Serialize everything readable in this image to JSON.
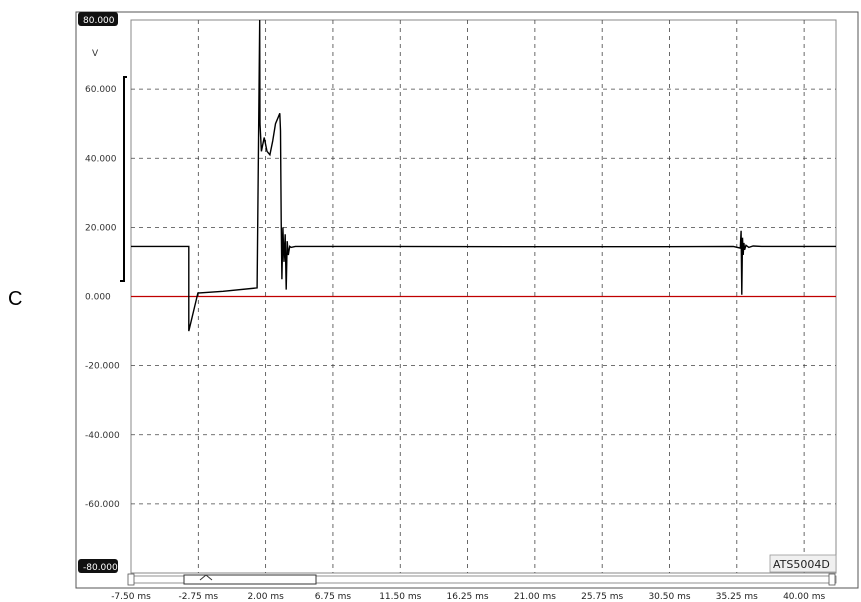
{
  "panel_label": "C",
  "instrument_label": "ATS5004D",
  "chart_data": {
    "type": "line",
    "ylabel": "V",
    "ylim": [
      -80,
      80
    ],
    "xlim": [
      -7.5,
      42.25
    ],
    "x_unit": "ms",
    "y_tick_labels": [
      "80.000",
      "60.000",
      "40.000",
      "20.000",
      "0.000",
      "-20.000",
      "-40.000",
      "-60.000",
      "-80.000"
    ],
    "y_tick_values": [
      80,
      60,
      40,
      20,
      0,
      -20,
      -40,
      -60,
      -80
    ],
    "x_tick_labels": [
      "-7.50 ms",
      "-2.75 ms",
      "2.00 ms",
      "6.75 ms",
      "11.50 ms",
      "16.25 ms",
      "21.00 ms",
      "25.75 ms",
      "30.50 ms",
      "35.25 ms",
      "40.00 ms"
    ],
    "x_tick_values": [
      -7.5,
      -2.75,
      2.0,
      6.75,
      11.5,
      16.25,
      21.0,
      25.75,
      30.5,
      35.25,
      40.0
    ],
    "grid": true,
    "series": [
      {
        "color": "#000000",
        "x": [
          -7.5,
          -3.42,
          -3.42,
          -3.42,
          -2.78,
          -1.0,
          1.4,
          1.58,
          1.6,
          1.7,
          1.9,
          2.1,
          2.3,
          2.5,
          2.7,
          2.9,
          3.0,
          3.05,
          3.1,
          3.15,
          3.22,
          3.3,
          3.38,
          3.45,
          3.52,
          3.6,
          3.7,
          3.8,
          3.9,
          4.1,
          5.0,
          10.0,
          20.0,
          30.0,
          35.0,
          35.5,
          35.55,
          35.6,
          35.65,
          35.7,
          35.75,
          35.8,
          35.9,
          36.1,
          36.4,
          37.0,
          42.25
        ],
        "y": [
          14.5,
          14.5,
          0.5,
          -10.0,
          1.0,
          1.5,
          2.5,
          80.0,
          50.0,
          42.0,
          46.0,
          42.0,
          41.0,
          45.0,
          50.0,
          52.0,
          53.0,
          48.0,
          22.0,
          5.0,
          20.0,
          10.0,
          18.0,
          2.0,
          16.0,
          12.0,
          14.5,
          14.2,
          14.3,
          14.5,
          14.5,
          14.5,
          14.4,
          14.4,
          14.5,
          14.0,
          19.0,
          0.5,
          17.0,
          12.0,
          15.5,
          13.5,
          14.8,
          14.2,
          14.6,
          14.5,
          14.5
        ]
      },
      {
        "color": "#c00000",
        "x": [
          -7.5,
          42.25
        ],
        "y": [
          0,
          0
        ]
      }
    ]
  }
}
